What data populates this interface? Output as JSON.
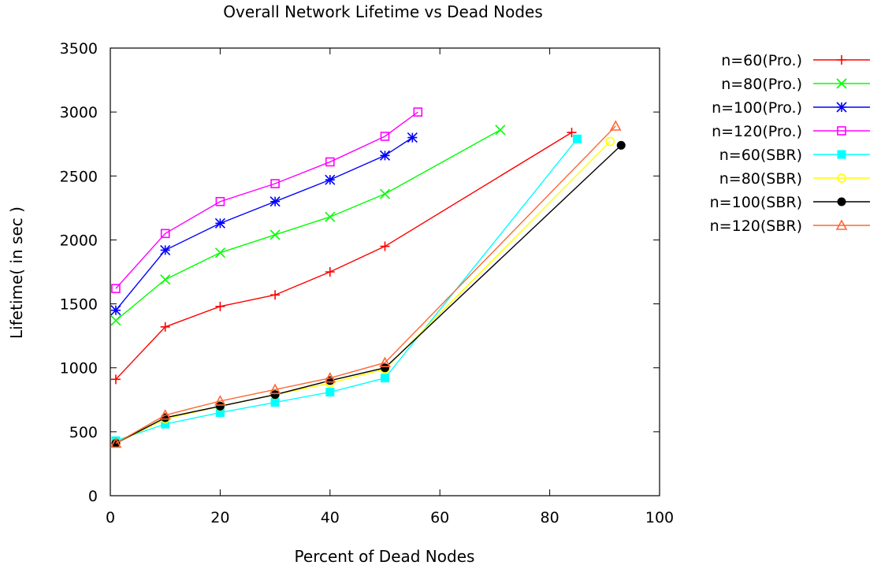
{
  "chart_data": {
    "type": "line",
    "title": "Overall Network Lifetime vs Dead Nodes",
    "xlabel": "Percent of Dead Nodes",
    "ylabel": "Lifetime( in sec )",
    "xlim": [
      0,
      100
    ],
    "ylim": [
      0,
      3500
    ],
    "xticks": [
      0,
      20,
      40,
      60,
      80,
      100
    ],
    "yticks": [
      0,
      500,
      1000,
      1500,
      2000,
      2500,
      3000,
      3500
    ],
    "grid": false,
    "legend_position": "outside-right",
    "series": [
      {
        "name": "n=60(Pro.)",
        "color": "#ff0000",
        "marker": "plus",
        "x": [
          1,
          10,
          20,
          30,
          40,
          50,
          84
        ],
        "y": [
          910,
          1320,
          1480,
          1570,
          1750,
          1950,
          2840
        ]
      },
      {
        "name": "n=80(Pro.)",
        "color": "#00ff00",
        "marker": "cross",
        "x": [
          1,
          10,
          20,
          30,
          40,
          50,
          71
        ],
        "y": [
          1370,
          1690,
          1900,
          2040,
          2180,
          2360,
          2860
        ]
      },
      {
        "name": "n=100(Pro.)",
        "color": "#0000ff",
        "marker": "star",
        "x": [
          1,
          10,
          20,
          30,
          40,
          50,
          55
        ],
        "y": [
          1450,
          1920,
          2130,
          2300,
          2470,
          2660,
          2800
        ]
      },
      {
        "name": "n=120(Pro.)",
        "color": "#ff00ff",
        "marker": "square-open",
        "x": [
          1,
          10,
          20,
          30,
          40,
          50,
          56
        ],
        "y": [
          1620,
          2050,
          2300,
          2440,
          2610,
          2810,
          3000
        ]
      },
      {
        "name": "n=60(SBR)",
        "color": "#00ffff",
        "marker": "square-filled",
        "x": [
          1,
          10,
          20,
          30,
          40,
          50,
          85
        ],
        "y": [
          430,
          560,
          650,
          730,
          810,
          920,
          2790
        ]
      },
      {
        "name": "n=80(SBR)",
        "color": "#ffff00",
        "marker": "circle-open",
        "x": [
          1,
          10,
          20,
          30,
          40,
          50,
          91
        ],
        "y": [
          410,
          600,
          700,
          790,
          880,
          990,
          2770
        ]
      },
      {
        "name": "n=100(SBR)",
        "color": "#000000",
        "marker": "circle-filled",
        "x": [
          1,
          10,
          20,
          30,
          40,
          50,
          93
        ],
        "y": [
          410,
          610,
          700,
          790,
          900,
          1000,
          2740
        ]
      },
      {
        "name": "n=120(SBR)",
        "color": "#ff6633",
        "marker": "triangle-open",
        "x": [
          1,
          10,
          20,
          30,
          40,
          50,
          92
        ],
        "y": [
          410,
          630,
          740,
          830,
          920,
          1040,
          2890
        ]
      }
    ]
  }
}
